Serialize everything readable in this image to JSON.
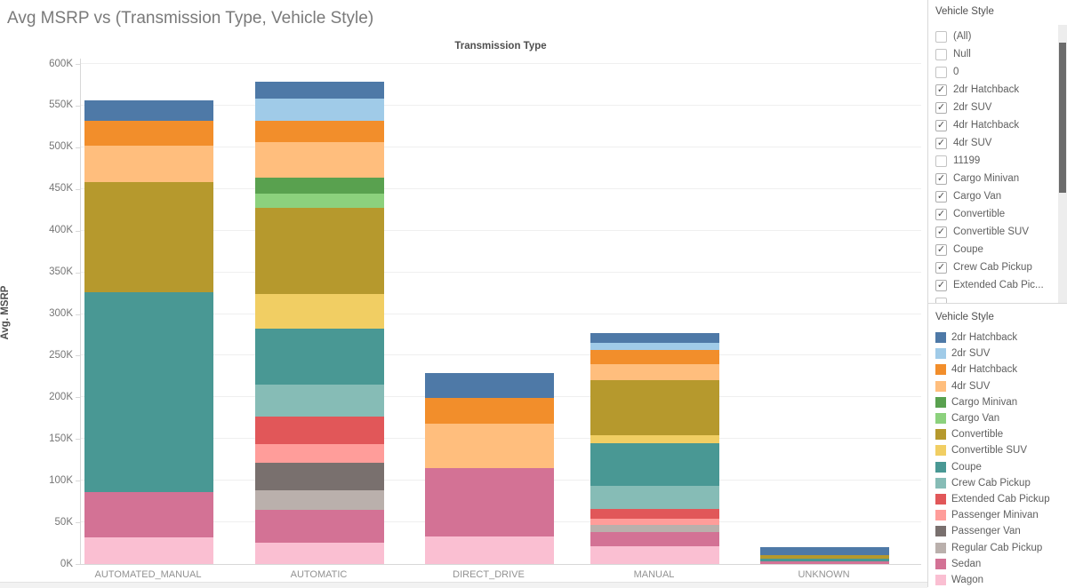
{
  "chart_data": {
    "type": "bar",
    "stacked": true,
    "title": "Avg MSRP vs (Transmission Type, Vehicle Style)",
    "col_header": "Transmission Type",
    "ylabel": "Avg. MSRP",
    "unit": "thousands (K)",
    "ylim": [
      0,
      600
    ],
    "yticks": [
      "0K",
      "50K",
      "100K",
      "150K",
      "200K",
      "250K",
      "300K",
      "350K",
      "400K",
      "450K",
      "500K",
      "550K",
      "600K"
    ],
    "grid": true,
    "legend_position": "right",
    "categories": [
      "AUTOMATED_MANUAL",
      "AUTOMATIC",
      "DIRECT_DRIVE",
      "MANUAL",
      "UNKNOWN"
    ],
    "series": [
      {
        "name": "2dr Hatchback",
        "color": "#4e79a7",
        "values": [
          24,
          20,
          30,
          11,
          9
        ]
      },
      {
        "name": "2dr SUV",
        "color": "#a0cbe8",
        "values": [
          0,
          27,
          0,
          9,
          0
        ]
      },
      {
        "name": "4dr Hatchback",
        "color": "#f28e2b",
        "values": [
          30,
          26,
          31,
          17,
          0
        ]
      },
      {
        "name": "4dr SUV",
        "color": "#ffbe7d",
        "values": [
          44,
          42,
          53,
          19,
          0
        ]
      },
      {
        "name": "Cargo Minivan",
        "color": "#59a14f",
        "values": [
          0,
          20,
          0,
          0,
          0
        ]
      },
      {
        "name": "Cargo Van",
        "color": "#8cd17d",
        "values": [
          0,
          17,
          0,
          0,
          0
        ]
      },
      {
        "name": "Convertible",
        "color": "#b6992d",
        "values": [
          132,
          103,
          0,
          66,
          5
        ]
      },
      {
        "name": "Convertible SUV",
        "color": "#f1ce63",
        "values": [
          0,
          41,
          0,
          10,
          0
        ]
      },
      {
        "name": "Coupe",
        "color": "#499894",
        "values": [
          240,
          68,
          0,
          51,
          3
        ]
      },
      {
        "name": "Crew Cab Pickup",
        "color": "#86bcb6",
        "values": [
          0,
          38,
          0,
          28,
          0
        ]
      },
      {
        "name": "Extended Cab Pickup",
        "color": "#e15759",
        "values": [
          0,
          33,
          0,
          12,
          0
        ]
      },
      {
        "name": "Passenger Minivan",
        "color": "#ff9d9a",
        "values": [
          0,
          23,
          0,
          7,
          0
        ]
      },
      {
        "name": "Passenger Van",
        "color": "#79706e",
        "values": [
          0,
          32,
          0,
          0,
          0
        ]
      },
      {
        "name": "Regular Cab Pickup",
        "color": "#bab0ac",
        "values": [
          0,
          24,
          0,
          9,
          0
        ]
      },
      {
        "name": "Sedan",
        "color": "#d37295",
        "values": [
          54,
          39,
          82,
          17,
          3
        ]
      },
      {
        "name": "Wagon",
        "color": "#fabfd2",
        "values": [
          32,
          26,
          33,
          21,
          0
        ]
      }
    ],
    "totals": [
      556,
      579,
      229,
      277,
      20
    ]
  },
  "filter_panel": {
    "header": "Vehicle Style",
    "items": [
      {
        "label": "(All)",
        "checked": false
      },
      {
        "label": "Null",
        "checked": false
      },
      {
        "label": "0",
        "checked": false
      },
      {
        "label": "2dr Hatchback",
        "checked": true
      },
      {
        "label": "2dr SUV",
        "checked": true
      },
      {
        "label": "4dr Hatchback",
        "checked": true
      },
      {
        "label": "4dr SUV",
        "checked": true
      },
      {
        "label": "11199",
        "checked": false
      },
      {
        "label": "Cargo Minivan",
        "checked": true
      },
      {
        "label": "Cargo Van",
        "checked": true
      },
      {
        "label": "Convertible",
        "checked": true
      },
      {
        "label": "Convertible SUV",
        "checked": true
      },
      {
        "label": "Coupe",
        "checked": true
      },
      {
        "label": "Crew Cab Pickup",
        "checked": true
      },
      {
        "label": "Extended Cab Pic...",
        "checked": true
      },
      {
        "label": "",
        "checked": false
      }
    ]
  },
  "legend_panel": {
    "header": "Vehicle Style"
  },
  "icons": {
    "checkmark": "✓"
  }
}
